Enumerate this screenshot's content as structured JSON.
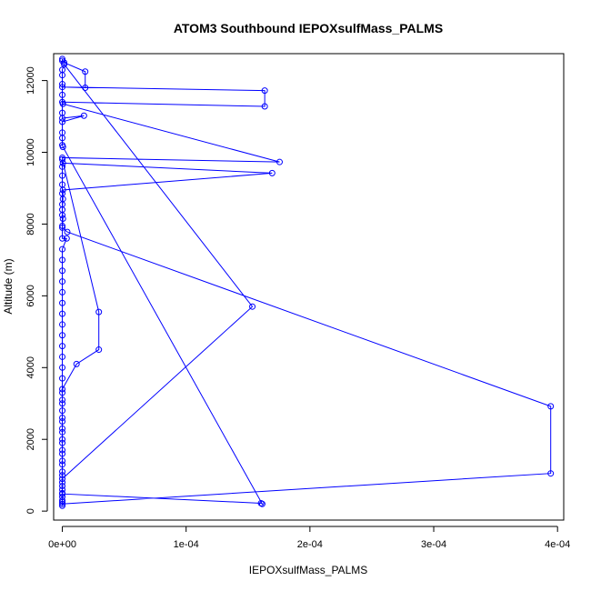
{
  "chart_data": {
    "type": "line",
    "title": "ATOM3 Southbound IEPOXsulfMass_PALMS",
    "xlabel": "IEPOXsulfMass_PALMS",
    "ylabel": "Altitude (m)",
    "xlim": [
      -7e-06,
      0.000405
    ],
    "ylim": [
      -250,
      12750
    ],
    "x_ticks": [
      {
        "value": 0,
        "label": "0e+00"
      },
      {
        "value": 0.0001,
        "label": "1e-04"
      },
      {
        "value": 0.0002,
        "label": "2e-04"
      },
      {
        "value": 0.0003,
        "label": "3e-04"
      },
      {
        "value": 0.0004,
        "label": "4e-04"
      }
    ],
    "y_ticks": [
      {
        "value": 0,
        "label": "0"
      },
      {
        "value": 2000,
        "label": "2000"
      },
      {
        "value": 4000,
        "label": "4000"
      },
      {
        "value": 6000,
        "label": "6000"
      },
      {
        "value": 8000,
        "label": "8000"
      },
      {
        "value": 10000,
        "label": "10000"
      },
      {
        "value": 12000,
        "label": "12000"
      }
    ],
    "grid": false,
    "series": [
      {
        "color": "#0000ff",
        "marker": "open-circle",
        "points": [
          {
            "x": 0.0,
            "y": 12600
          },
          {
            "x": 0.0,
            "y": 12550
          },
          {
            "x": 1.5e-06,
            "y": 12500
          },
          {
            "x": 1.85e-05,
            "y": 12250
          },
          {
            "x": 1.85e-05,
            "y": 11800
          },
          {
            "x": 0.0,
            "y": 11820
          },
          {
            "x": 0.0001635,
            "y": 11720
          },
          {
            "x": 0.0001635,
            "y": 11280
          },
          {
            "x": 0.0,
            "y": 11400
          },
          {
            "x": 5e-07,
            "y": 11350
          },
          {
            "x": 0.0001755,
            "y": 9730
          },
          {
            "x": 0.0,
            "y": 9850
          },
          {
            "x": 5e-07,
            "y": 9700
          },
          {
            "x": 0.0001695,
            "y": 9420
          },
          {
            "x": 5e-07,
            "y": 8950
          },
          {
            "x": 5e-07,
            "y": 8700
          },
          {
            "x": 0.0,
            "y": 8400
          },
          {
            "x": 5e-07,
            "y": 8150
          },
          {
            "x": 0.0,
            "y": 7900
          },
          {
            "x": 4e-06,
            "y": 7780
          },
          {
            "x": 0.0003945,
            "y": 2920
          },
          {
            "x": 0.0003945,
            "y": 1050
          },
          {
            "x": 0.0,
            "y": 200
          },
          {
            "x": 0.0,
            "y": 150
          },
          {
            "x": 0.0,
            "y": 300
          },
          {
            "x": 0.0,
            "y": 500
          },
          {
            "x": 0.0,
            "y": 900
          },
          {
            "x": 0.0001535,
            "y": 5700
          },
          {
            "x": 1.5e-06,
            "y": 12450
          },
          {
            "x": 0.0,
            "y": 12300
          },
          {
            "x": 0.0,
            "y": 12150
          },
          {
            "x": 0.0,
            "y": 11900
          },
          {
            "x": 0.0,
            "y": 11600
          },
          {
            "x": 0.0,
            "y": 11100
          },
          {
            "x": 0.0,
            "y": 10950
          },
          {
            "x": 1.75e-05,
            "y": 11020
          },
          {
            "x": 0.0,
            "y": 10850
          },
          {
            "x": 0.0,
            "y": 10550
          },
          {
            "x": 0.0,
            "y": 10400
          },
          {
            "x": 0.0,
            "y": 10200
          },
          {
            "x": 5e-07,
            "y": 10150
          },
          {
            "x": 0.0001615,
            "y": 200
          },
          {
            "x": 0.0001605,
            "y": 220
          },
          {
            "x": 0.0,
            "y": 480
          },
          {
            "x": 0.0,
            "y": 700
          },
          {
            "x": 0.0,
            "y": 1000
          },
          {
            "x": 0.0,
            "y": 1300
          },
          {
            "x": 0.0,
            "y": 1600
          },
          {
            "x": 0.0,
            "y": 1900
          },
          {
            "x": 0.0,
            "y": 2200
          },
          {
            "x": 0.0,
            "y": 2500
          },
          {
            "x": 0.0,
            "y": 2800
          },
          {
            "x": 0.0,
            "y": 3100
          },
          {
            "x": 0.0,
            "y": 3400
          },
          {
            "x": 1.15e-05,
            "y": 4100
          },
          {
            "x": 2.95e-05,
            "y": 4500
          },
          {
            "x": 2.95e-05,
            "y": 5550
          },
          {
            "x": 0.0,
            "y": 9800
          },
          {
            "x": 0.0,
            "y": 9600
          },
          {
            "x": 0.0,
            "y": 9350
          },
          {
            "x": 0.0,
            "y": 9100
          },
          {
            "x": 0.0,
            "y": 8850
          },
          {
            "x": 0.0,
            "y": 8550
          },
          {
            "x": 0.0,
            "y": 8250
          },
          {
            "x": 0.0,
            "y": 7950
          },
          {
            "x": 0.0,
            "y": 7600
          },
          {
            "x": 3.5e-06,
            "y": 7600
          },
          {
            "x": 0.0,
            "y": 7300
          },
          {
            "x": 0.0,
            "y": 7000
          },
          {
            "x": 0.0,
            "y": 6700
          },
          {
            "x": 0.0,
            "y": 6400
          },
          {
            "x": 0.0,
            "y": 6100
          },
          {
            "x": 0.0,
            "y": 5800
          },
          {
            "x": 0.0,
            "y": 5500
          },
          {
            "x": 0.0,
            "y": 5200
          },
          {
            "x": 0.0,
            "y": 4900
          },
          {
            "x": 0.0,
            "y": 4600
          },
          {
            "x": 0.0,
            "y": 4300
          },
          {
            "x": 0.0,
            "y": 4000
          },
          {
            "x": 0.0,
            "y": 3700
          },
          {
            "x": 0.0,
            "y": 3300
          },
          {
            "x": 0.0,
            "y": 3000
          },
          {
            "x": 0.0,
            "y": 2600
          },
          {
            "x": 0.0,
            "y": 2300
          },
          {
            "x": 0.0,
            "y": 2000
          },
          {
            "x": 0.0,
            "y": 1700
          },
          {
            "x": 0.0,
            "y": 1400
          },
          {
            "x": 0.0,
            "y": 1100
          },
          {
            "x": 0.0,
            "y": 800
          },
          {
            "x": 0.0,
            "y": 600
          },
          {
            "x": 0.0,
            "y": 400
          },
          {
            "x": 0.0,
            "y": 250
          }
        ]
      }
    ]
  }
}
